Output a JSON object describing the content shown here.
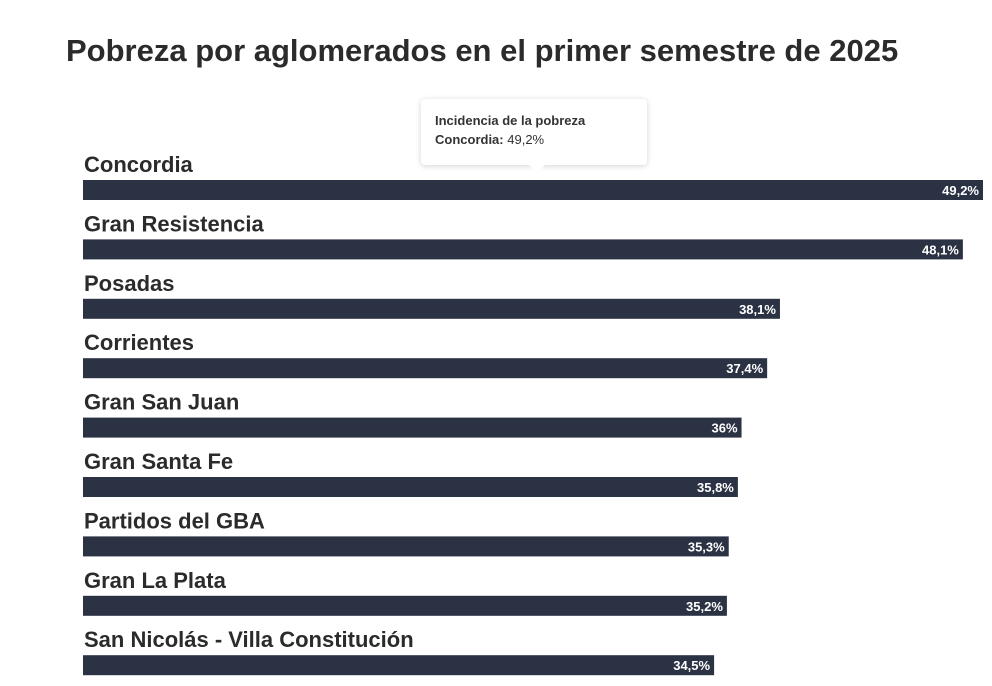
{
  "chart_data": {
    "type": "bar",
    "orientation": "horizontal",
    "title": "Pobreza por aglomerados en el primer semestre de 2025",
    "categories": [
      "Concordia",
      "Gran Resistencia",
      "Posadas",
      "Corrientes",
      "Gran San Juan",
      "Gran Santa Fe",
      "Partidos del GBA",
      "Gran La Plata",
      "San Nicolás - Villa Constitución"
    ],
    "series": [
      {
        "name": "Incidencia de la pobreza",
        "values": [
          49.2,
          48.1,
          38.1,
          37.4,
          36,
          35.8,
          35.3,
          35.2,
          34.5
        ]
      }
    ],
    "data_labels": [
      "49,2%",
      "48,1%",
      "38,1%",
      "37,4%",
      "36%",
      "35,8%",
      "35,3%",
      "35,2%",
      "34,5%"
    ],
    "xlabel": "",
    "ylabel": "",
    "xlim": [
      0,
      49.2
    ],
    "grid": false,
    "bar_color": "#2a3244"
  },
  "tooltip": {
    "title": "Incidencia de la pobreza",
    "category": "Concordia:",
    "value": "49,2%"
  }
}
